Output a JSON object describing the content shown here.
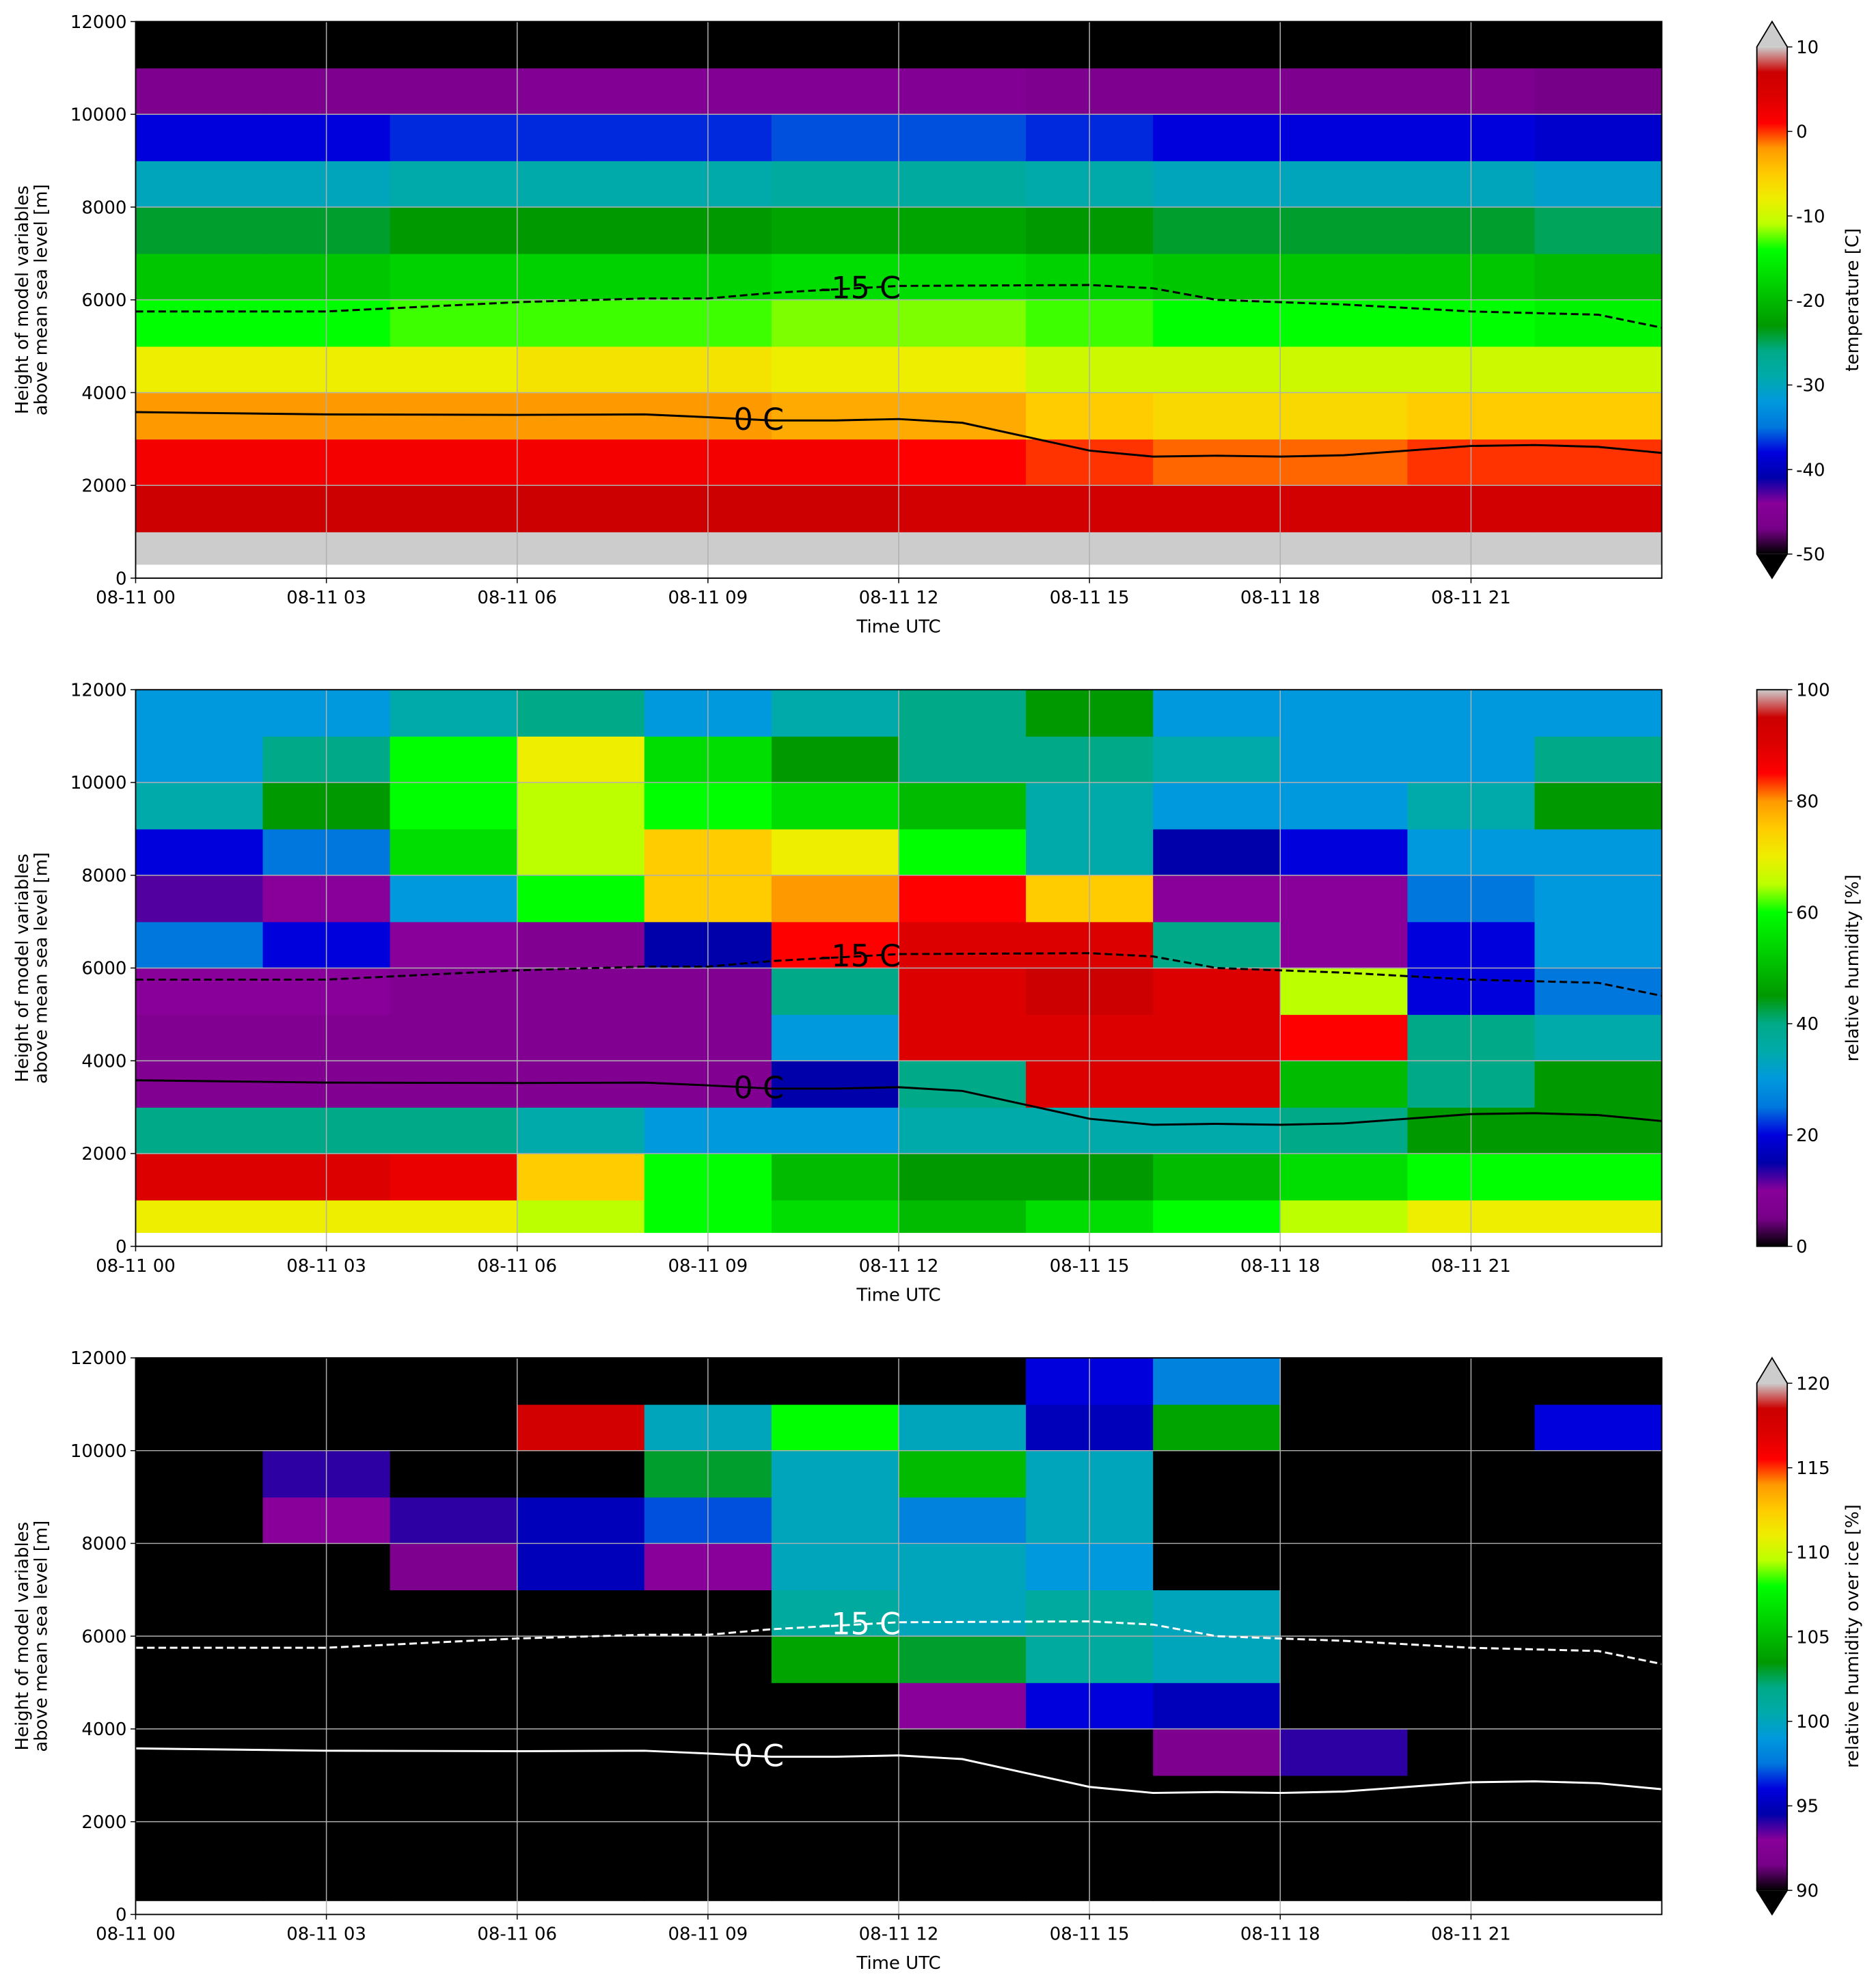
{
  "chart_data": [
    {
      "type": "heatmap",
      "xlabel": "Time UTC",
      "ylabel": [
        "Height of model variables",
        "above mean sea level [m]"
      ],
      "xlim": [
        0,
        24
      ],
      "xticks": [
        {
          "value": 0,
          "label": "08-11 00"
        },
        {
          "value": 3,
          "label": "08-11 03"
        },
        {
          "value": 6,
          "label": "08-11 06"
        },
        {
          "value": 9,
          "label": "08-11 09"
        },
        {
          "value": 12,
          "label": "08-11 12"
        },
        {
          "value": 15,
          "label": "08-11 15"
        },
        {
          "value": 18,
          "label": "08-11 18"
        },
        {
          "value": 21,
          "label": "08-11 21"
        }
      ],
      "ylim": [
        0,
        12000
      ],
      "yticks": [
        0,
        2000,
        4000,
        6000,
        8000,
        10000,
        12000
      ],
      "grid": true,
      "x_edges": [
        0,
        2,
        4,
        6,
        8,
        10,
        12,
        14,
        16,
        18,
        20,
        22,
        24
      ],
      "y_edges": [
        0,
        300,
        1000,
        2000,
        3000,
        4000,
        5000,
        6000,
        7000,
        8000,
        9000,
        10000,
        11000,
        12000
      ],
      "z": [
        [
          null,
          null,
          null,
          null,
          null,
          null,
          null,
          null,
          null,
          null,
          null,
          null
        ],
        [
          14,
          14,
          14,
          14,
          14,
          14,
          14,
          14,
          14,
          14,
          14,
          14
        ],
        [
          7,
          7,
          7,
          7,
          7,
          7,
          6,
          6,
          6,
          6,
          6,
          6
        ],
        [
          2,
          2,
          2,
          2,
          2,
          2,
          1,
          0,
          -1,
          -1,
          0,
          0
        ],
        [
          -2,
          -2,
          -2,
          -2,
          -2,
          -3,
          -3,
          -5,
          -6,
          -6,
          -5,
          -5
        ],
        [
          -8,
          -8,
          -8,
          -7,
          -7,
          -8,
          -8,
          -10,
          -10,
          -10,
          -10,
          -10
        ],
        [
          -14,
          -14,
          -13,
          -13,
          -13,
          -12,
          -12,
          -13,
          -14,
          -14,
          -14,
          -15
        ],
        [
          -19,
          -19,
          -18,
          -18,
          -18,
          -17,
          -17,
          -18,
          -19,
          -19,
          -19,
          -20
        ],
        [
          -24,
          -24,
          -23,
          -23,
          -23,
          -22,
          -22,
          -23,
          -24,
          -24,
          -24,
          -25
        ],
        [
          -30,
          -30,
          -29,
          -29,
          -29,
          -28,
          -28,
          -29,
          -30,
          -30,
          -30,
          -31
        ],
        [
          -38,
          -38,
          -37,
          -37,
          -37,
          -36,
          -36,
          -37,
          -38,
          -38,
          -38,
          -39
        ],
        [
          -46,
          -46,
          -46,
          -45,
          -45,
          -45,
          -45,
          -46,
          -46,
          -46,
          -46,
          -47
        ],
        [
          -55,
          -55,
          -55,
          -55,
          -55,
          -55,
          -55,
          -55,
          -55,
          -55,
          -55,
          -55
        ]
      ],
      "colorbar": {
        "label": "temperature [C]",
        "lim": [
          -50,
          10
        ],
        "ticks": [
          -50,
          -40,
          -30,
          -20,
          -10,
          0,
          10
        ],
        "extend": "both",
        "under_color": "#000000",
        "over_color": "#cccccc",
        "colors": [
          "#000000",
          "#770088",
          "#880099",
          "#0000aa",
          "#0000dd",
          "#0077dd",
          "#0099dd",
          "#00aaaa",
          "#00aa88",
          "#009900",
          "#00bb00",
          "#00dd00",
          "#00ff00",
          "#bbff00",
          "#eeee00",
          "#ffcc00",
          "#ff9900",
          "#ff0000",
          "#dd0000",
          "#cc0000",
          "#cccccc"
        ]
      },
      "contours": [
        {
          "label": "-15 C",
          "style": "dashed",
          "color": "#000000",
          "x": [
            0,
            3,
            6,
            8,
            9,
            10,
            12,
            15,
            16,
            17,
            19,
            21,
            23,
            24
          ],
          "values": [
            5750,
            5750,
            5950,
            6030,
            6030,
            6150,
            6300,
            6320,
            6250,
            6000,
            5900,
            5750,
            5680,
            5400
          ]
        },
        {
          "label": "0 C",
          "style": "solid",
          "color": "#000000",
          "x": [
            0,
            3,
            6,
            8,
            9,
            10,
            11,
            12,
            13,
            14,
            15,
            16,
            17,
            18,
            19,
            21,
            22,
            23,
            24
          ],
          "values": [
            3580,
            3530,
            3520,
            3530,
            3470,
            3400,
            3400,
            3430,
            3350,
            3050,
            2750,
            2620,
            2640,
            2620,
            2650,
            2850,
            2870,
            2830,
            2700
          ]
        }
      ]
    },
    {
      "type": "heatmap",
      "xlabel": "Time UTC",
      "ylabel": [
        "Height of model variables",
        "above mean sea level [m]"
      ],
      "xlim": [
        0,
        24
      ],
      "xticks": [
        {
          "value": 0,
          "label": "08-11 00"
        },
        {
          "value": 3,
          "label": "08-11 03"
        },
        {
          "value": 6,
          "label": "08-11 06"
        },
        {
          "value": 9,
          "label": "08-11 09"
        },
        {
          "value": 12,
          "label": "08-11 12"
        },
        {
          "value": 15,
          "label": "08-11 15"
        },
        {
          "value": 18,
          "label": "08-11 18"
        },
        {
          "value": 21,
          "label": "08-11 21"
        }
      ],
      "ylim": [
        0,
        12000
      ],
      "yticks": [
        0,
        2000,
        4000,
        6000,
        8000,
        10000,
        12000
      ],
      "grid": true,
      "x_edges": [
        0,
        2,
        4,
        6,
        8,
        10,
        12,
        14,
        16,
        18,
        20,
        22,
        24
      ],
      "y_edges": [
        0,
        300,
        1000,
        2000,
        3000,
        4000,
        5000,
        6000,
        7000,
        8000,
        9000,
        10000,
        11000,
        12000
      ],
      "z": [
        [
          null,
          null,
          null,
          null,
          null,
          null,
          null,
          null,
          null,
          null,
          null,
          null
        ],
        [
          70,
          70,
          70,
          65,
          60,
          55,
          50,
          55,
          60,
          65,
          70,
          70
        ],
        [
          90,
          90,
          88,
          75,
          60,
          50,
          45,
          45,
          50,
          55,
          60,
          60
        ],
        [
          40,
          40,
          40,
          35,
          30,
          30,
          35,
          35,
          35,
          40,
          45,
          45
        ],
        [
          8,
          8,
          8,
          8,
          8,
          15,
          40,
          90,
          90,
          50,
          40,
          45
        ],
        [
          8,
          8,
          8,
          8,
          8,
          30,
          90,
          90,
          90,
          85,
          40,
          35
        ],
        [
          10,
          10,
          8,
          8,
          8,
          40,
          90,
          95,
          90,
          65,
          20,
          25
        ],
        [
          25,
          20,
          10,
          8,
          15,
          85,
          90,
          90,
          40,
          10,
          20,
          30
        ],
        [
          12,
          10,
          30,
          60,
          75,
          80,
          85,
          75,
          10,
          10,
          25,
          30
        ],
        [
          20,
          25,
          55,
          65,
          75,
          70,
          60,
          35,
          15,
          20,
          30,
          30
        ],
        [
          35,
          45,
          60,
          65,
          60,
          55,
          50,
          35,
          30,
          30,
          35,
          45
        ],
        [
          30,
          40,
          60,
          70,
          55,
          45,
          40,
          40,
          35,
          30,
          30,
          40
        ],
        [
          30,
          30,
          35,
          40,
          30,
          35,
          40,
          45,
          30,
          30,
          30,
          30
        ]
      ],
      "colorbar": {
        "label": "relative humidity [%]",
        "lim": [
          0,
          100
        ],
        "ticks": [
          0,
          20,
          40,
          60,
          80,
          100
        ],
        "extend": "neither",
        "under_color": "#000000",
        "over_color": "#cccccc",
        "colors": [
          "#000000",
          "#770088",
          "#880099",
          "#0000aa",
          "#0000dd",
          "#0077dd",
          "#0099dd",
          "#00aaaa",
          "#00aa88",
          "#009900",
          "#00bb00",
          "#00dd00",
          "#00ff00",
          "#bbff00",
          "#eeee00",
          "#ffcc00",
          "#ff9900",
          "#ff0000",
          "#dd0000",
          "#cc0000",
          "#cccccc"
        ]
      },
      "contours": [
        {
          "label": "-15 C",
          "style": "dashed",
          "color": "#000000",
          "x": [
            0,
            3,
            6,
            8,
            9,
            10,
            12,
            15,
            16,
            17,
            19,
            21,
            23,
            24
          ],
          "values": [
            5750,
            5750,
            5950,
            6030,
            6030,
            6150,
            6300,
            6320,
            6250,
            6000,
            5900,
            5750,
            5680,
            5400
          ]
        },
        {
          "label": "0 C",
          "style": "solid",
          "color": "#000000",
          "x": [
            0,
            3,
            6,
            8,
            9,
            10,
            11,
            12,
            13,
            14,
            15,
            16,
            17,
            18,
            19,
            21,
            22,
            23,
            24
          ],
          "values": [
            3580,
            3530,
            3520,
            3530,
            3470,
            3400,
            3400,
            3430,
            3350,
            3050,
            2750,
            2620,
            2640,
            2620,
            2650,
            2850,
            2870,
            2830,
            2700
          ]
        }
      ]
    },
    {
      "type": "heatmap",
      "xlabel": "Time UTC",
      "ylabel": [
        "Height of model variables",
        "above mean sea level [m]"
      ],
      "xlim": [
        0,
        24
      ],
      "xticks": [
        {
          "value": 0,
          "label": "08-11 00"
        },
        {
          "value": 3,
          "label": "08-11 03"
        },
        {
          "value": 6,
          "label": "08-11 06"
        },
        {
          "value": 9,
          "label": "08-11 09"
        },
        {
          "value": 12,
          "label": "08-11 12"
        },
        {
          "value": 15,
          "label": "08-11 15"
        },
        {
          "value": 18,
          "label": "08-11 18"
        },
        {
          "value": 21,
          "label": "08-11 21"
        }
      ],
      "ylim": [
        0,
        12000
      ],
      "yticks": [
        0,
        2000,
        4000,
        6000,
        8000,
        10000,
        12000
      ],
      "grid": true,
      "x_edges": [
        0,
        2,
        4,
        6,
        8,
        10,
        12,
        14,
        16,
        18,
        20,
        22,
        24
      ],
      "y_edges": [
        0,
        300,
        1000,
        2000,
        3000,
        4000,
        5000,
        6000,
        7000,
        8000,
        9000,
        10000,
        11000,
        12000
      ],
      "z": [
        [
          null,
          null,
          null,
          null,
          null,
          null,
          null,
          null,
          null,
          null,
          null,
          null
        ],
        [
          70,
          70,
          70,
          70,
          70,
          70,
          70,
          70,
          70,
          70,
          70,
          70
        ],
        [
          70,
          70,
          70,
          70,
          70,
          70,
          70,
          70,
          70,
          70,
          70,
          70
        ],
        [
          70,
          70,
          70,
          70,
          70,
          70,
          70,
          70,
          70,
          70,
          70,
          70
        ],
        [
          70,
          70,
          70,
          70,
          70,
          70,
          70,
          70,
          92,
          94,
          70,
          70
        ],
        [
          70,
          70,
          70,
          70,
          70,
          70,
          93,
          96,
          95,
          70,
          70,
          70
        ],
        [
          70,
          70,
          70,
          70,
          70,
          104,
          103,
          101,
          100,
          70,
          70,
          70
        ],
        [
          70,
          70,
          70,
          70,
          70,
          101,
          100,
          101,
          100,
          70,
          70,
          70
        ],
        [
          70,
          70,
          92,
          95,
          93,
          100,
          100,
          99,
          70,
          70,
          70,
          70
        ],
        [
          70,
          93,
          94,
          95,
          97,
          100,
          98,
          100,
          70,
          70,
          70,
          70
        ],
        [
          70,
          94,
          70,
          70,
          103,
          100,
          105,
          100,
          70,
          70,
          70,
          70
        ],
        [
          70,
          70,
          70,
          118,
          100,
          108,
          100,
          95,
          104,
          70,
          70,
          96
        ],
        [
          70,
          70,
          70,
          70,
          70,
          70,
          70,
          96,
          98,
          70,
          70,
          70
        ]
      ],
      "colorbar": {
        "label": "relative humidity over ice [%]",
        "lim": [
          90,
          120
        ],
        "ticks": [
          90,
          95,
          100,
          105,
          110,
          115,
          120
        ],
        "extend": "both",
        "under_color": "#000000",
        "over_color": "#cccccc",
        "colors": [
          "#000000",
          "#770088",
          "#880099",
          "#0000aa",
          "#0000dd",
          "#0077dd",
          "#0099dd",
          "#00aaaa",
          "#00aa88",
          "#009900",
          "#00bb00",
          "#00dd00",
          "#00ff00",
          "#bbff00",
          "#eeee00",
          "#ffcc00",
          "#ff9900",
          "#ff0000",
          "#dd0000",
          "#cc0000",
          "#cccccc"
        ]
      },
      "contours": [
        {
          "label": "-15 C",
          "style": "dashed",
          "color": "#ffffff",
          "x": [
            0,
            3,
            6,
            8,
            9,
            10,
            12,
            15,
            16,
            17,
            19,
            21,
            23,
            24
          ],
          "values": [
            5750,
            5750,
            5950,
            6030,
            6030,
            6150,
            6300,
            6320,
            6250,
            6000,
            5900,
            5750,
            5680,
            5400
          ]
        },
        {
          "label": "0 C",
          "style": "solid",
          "color": "#ffffff",
          "x": [
            0,
            3,
            6,
            8,
            9,
            10,
            11,
            12,
            13,
            14,
            15,
            16,
            17,
            18,
            19,
            21,
            22,
            23,
            24
          ],
          "values": [
            3580,
            3530,
            3520,
            3530,
            3470,
            3400,
            3400,
            3430,
            3350,
            3050,
            2750,
            2620,
            2640,
            2620,
            2650,
            2850,
            2870,
            2830,
            2700
          ]
        }
      ]
    }
  ]
}
